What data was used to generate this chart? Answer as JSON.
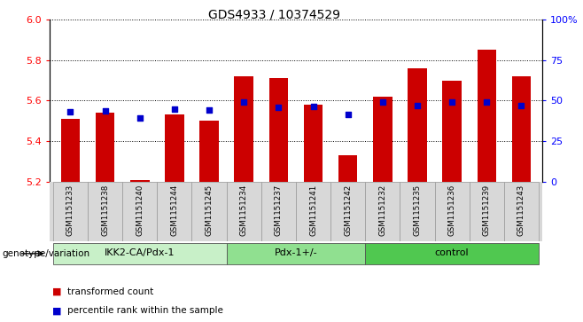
{
  "title": "GDS4933 / 10374529",
  "samples": [
    "GSM1151233",
    "GSM1151238",
    "GSM1151240",
    "GSM1151244",
    "GSM1151245",
    "GSM1151234",
    "GSM1151237",
    "GSM1151241",
    "GSM1151242",
    "GSM1151232",
    "GSM1151235",
    "GSM1151236",
    "GSM1151239",
    "GSM1151243"
  ],
  "bar_values": [
    5.51,
    5.54,
    5.21,
    5.53,
    5.5,
    5.72,
    5.71,
    5.58,
    5.33,
    5.62,
    5.76,
    5.7,
    5.85,
    5.72
  ],
  "dot_values": [
    5.545,
    5.548,
    5.515,
    5.558,
    5.552,
    5.593,
    5.565,
    5.57,
    5.53,
    5.595,
    5.575,
    5.595,
    5.593,
    5.575
  ],
  "groups": [
    {
      "label": "IKK2-CA/Pdx-1",
      "start": 0,
      "end": 5,
      "color": "#c8f0c8"
    },
    {
      "label": "Pdx-1+/-",
      "start": 5,
      "end": 9,
      "color": "#90e090"
    },
    {
      "label": "control",
      "start": 9,
      "end": 14,
      "color": "#50c850"
    }
  ],
  "bar_color": "#cc0000",
  "dot_color": "#0000cc",
  "ylim_left": [
    5.2,
    6.0
  ],
  "ylim_right": [
    0,
    100
  ],
  "yticks_left": [
    5.2,
    5.4,
    5.6,
    5.8,
    6.0
  ],
  "yticks_right": [
    0,
    25,
    50,
    75,
    100
  ],
  "ylabel_right_labels": [
    "0",
    "25",
    "50",
    "75",
    "100%"
  ],
  "bar_width": 0.55,
  "bar_bottom": 5.2,
  "legend_transformed": "transformed count",
  "legend_percentile": "percentile rank within the sample",
  "genotype_label": "genotype/variation",
  "background_color": "#ffffff"
}
